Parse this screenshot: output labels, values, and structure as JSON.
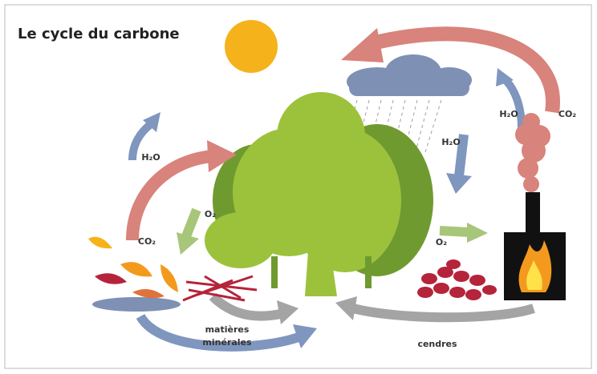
{
  "title": "Le cycle du carbone",
  "labels": [
    {
      "text": "H₂O"
    },
    {
      "text": "CO₂"
    },
    {
      "text": "O₂"
    },
    {
      "text": "H₂O"
    },
    {
      "text": "H₂O"
    },
    {
      "text": "CO₂"
    },
    {
      "text": "O₂"
    },
    {
      "text": "matières"
    },
    {
      "text": "minérales"
    },
    {
      "text": "cendres"
    }
  ]
}
